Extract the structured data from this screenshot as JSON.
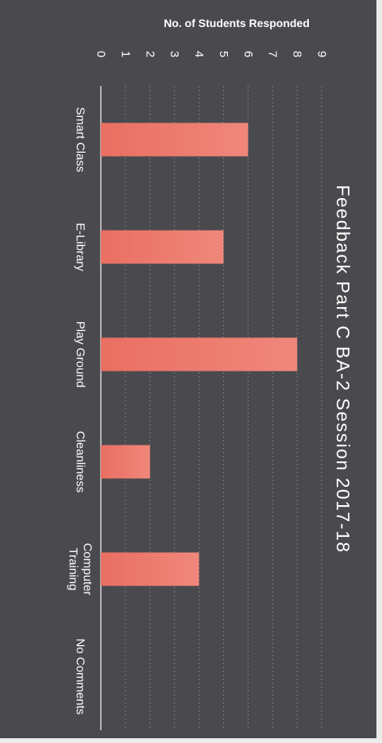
{
  "chart_data": {
    "type": "bar",
    "orientation": "horizontal",
    "page_rotated": "90deg clockwise",
    "title": "Feedback Part C BA-2 Session 2017-18",
    "ylabel": "No. of Students Responded",
    "categories": [
      "Smart Class",
      "E-Library",
      "Play Ground",
      "Cleanliness",
      "Computer Training",
      "No Comments"
    ],
    "category_lines": [
      [
        "Smart Class"
      ],
      [
        "E-Library"
      ],
      [
        "Play Ground"
      ],
      [
        "Cleanliness"
      ],
      [
        "Computer",
        "Training"
      ],
      [
        "No Comments"
      ]
    ],
    "values": [
      6,
      5,
      8,
      2,
      4,
      0
    ],
    "ylim": [
      0,
      9
    ],
    "ticks": [
      0,
      1,
      2,
      3,
      4,
      5,
      6,
      7,
      8,
      9
    ],
    "grid": true,
    "legend": "none",
    "colors": {
      "background": "#4a4a4e",
      "bar": "#f0877b",
      "bar_gradient_start": "#e96f62",
      "text": "#ffffff",
      "gridline": "#7c7c82",
      "axis": "#d8d8d8"
    }
  }
}
